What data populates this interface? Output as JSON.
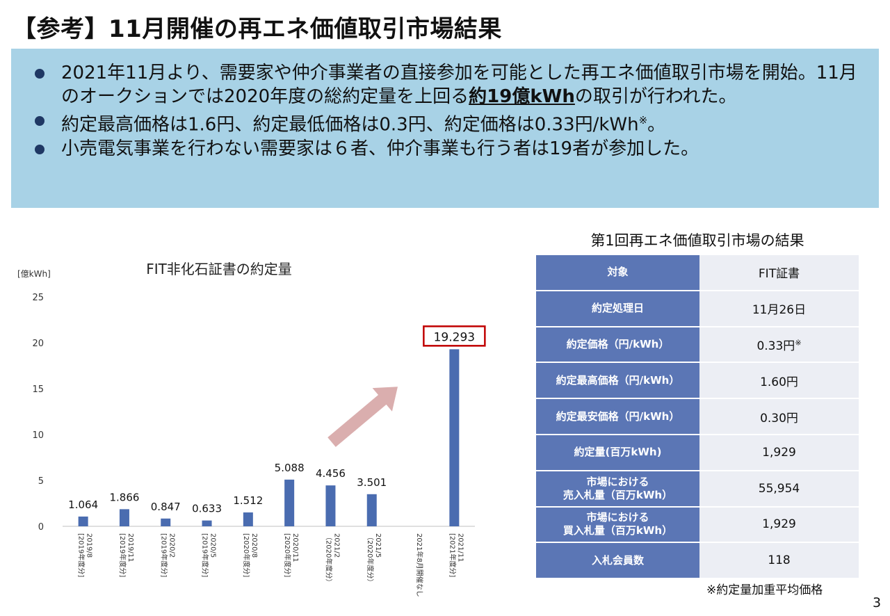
{
  "page": {
    "title": "【参考】11月開催の再エネ価値取引市場結果",
    "page_number": "3"
  },
  "bullets": [
    {
      "parts": [
        "2021年11月より、需要家や仲介事業者の直接参加を可能とした再エネ価値取引市場を開始。11月のオークションでは2020年度の総約定量を上回る",
        "約19億kWh",
        "の取引が行われた。"
      ]
    },
    {
      "parts": [
        "約定最高価格は1.6円、約定最低価格は0.3円、約定価格は0.33円/kWh",
        "※",
        "。"
      ]
    },
    {
      "parts": [
        "小売電気事業を行わない需要家は６者、仲介事業も行う者は19者が参加した。"
      ]
    }
  ],
  "chart_data": {
    "type": "bar",
    "title": "FIT非化石証書の約定量",
    "ylabel": "[億kWh]",
    "ylim": [
      0,
      25
    ],
    "yticks": [
      0,
      5,
      10,
      15,
      20,
      25
    ],
    "categories": [
      "2019/8\n[2019年度分]",
      "2019/11\n[2019年度分]",
      "2020/2\n[2019年度分]",
      "2020/5\n[2019年度分]",
      "2020/8\n[2020年度分]",
      "2020/11\n[2020年度分]",
      "2021/2\n（2020年度分）",
      "2021/5\n（2020年度分）",
      "2021年8月開催なし",
      "2021/11\n[2021年度分]"
    ],
    "values": [
      1.064,
      1.866,
      0.847,
      0.633,
      1.512,
      5.088,
      4.456,
      3.501,
      null,
      19.293
    ],
    "data_labels": [
      "1.064",
      "1.866",
      "0.847",
      "0.633",
      "1.512",
      "5.088",
      "4.456",
      "3.501",
      "",
      "19.293"
    ],
    "highlight_index": 9,
    "bar_color": "#4a6cb0",
    "highlight_box_color": "#c00000",
    "arrow_color": "#d4a0a0",
    "grid": false
  },
  "table": {
    "title": "第1回再エネ価値取引市場の結果",
    "rows": [
      {
        "key": "対象",
        "value": "FIT証書",
        "sup": ""
      },
      {
        "key": "約定処理日",
        "value": "11月26日",
        "sup": ""
      },
      {
        "key": "約定価格（円/kWh）",
        "value": "0.33円",
        "sup": "※"
      },
      {
        "key": "約定最高価格（円/kWh）",
        "value": "1.60円",
        "sup": ""
      },
      {
        "key": "約定最安価格（円/kWh）",
        "value": "0.30円",
        "sup": ""
      },
      {
        "key": "約定量(百万kWh)",
        "value": "1,929",
        "sup": ""
      },
      {
        "key": "市場における\n売入札量（百万kWh）",
        "value": "55,954",
        "sup": ""
      },
      {
        "key": "市場における\n買入札量（百万kWh）",
        "value": "1,929",
        "sup": ""
      },
      {
        "key": "入札会員数",
        "value": "118",
        "sup": ""
      }
    ],
    "key_bg": "#5b76b5",
    "value_bg": "#eceef4"
  },
  "footnote": "※約定量加重平均価格"
}
